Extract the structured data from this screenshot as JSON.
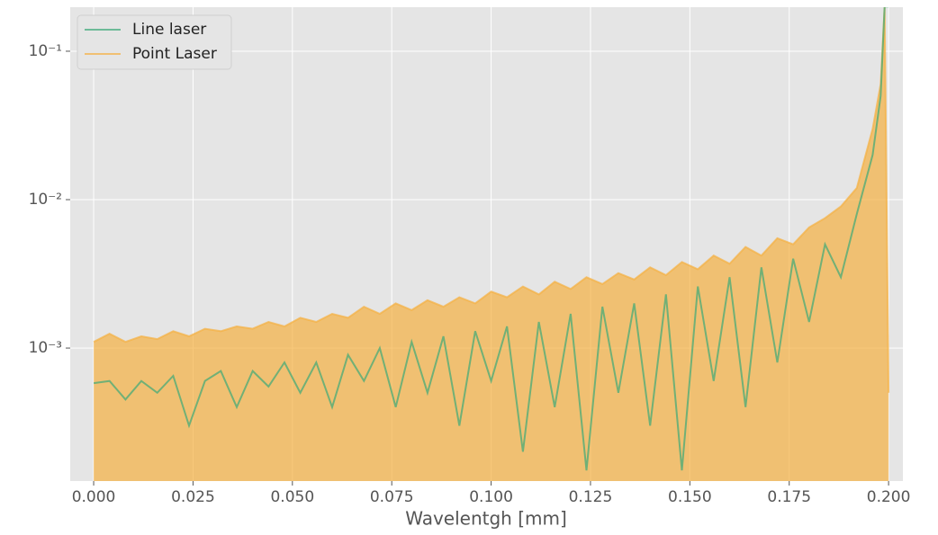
{
  "chart_data": {
    "type": "line",
    "xlabel": "Wavelentgh [mm]",
    "log_y": true,
    "grid": true,
    "legend": "upper left",
    "x": [
      0,
      0.004,
      0.008,
      0.012,
      0.016,
      0.02,
      0.024,
      0.028,
      0.032,
      0.036,
      0.04,
      0.044,
      0.048,
      0.052,
      0.056,
      0.06,
      0.064,
      0.068,
      0.072,
      0.076,
      0.08,
      0.084,
      0.088,
      0.092,
      0.096,
      0.1,
      0.104,
      0.108,
      0.112,
      0.116,
      0.12,
      0.124,
      0.128,
      0.132,
      0.136,
      0.14,
      0.144,
      0.148,
      0.152,
      0.156,
      0.16,
      0.164,
      0.168,
      0.172,
      0.176,
      0.18,
      0.184,
      0.188,
      0.192,
      0.196,
      0.198,
      0.199,
      0.2
    ],
    "series": [
      {
        "name": "Line laser",
        "color": "#3aaa78",
        "values": [
          0.00058,
          0.0006,
          0.00045,
          0.0006,
          0.0005,
          0.00065,
          0.0003,
          0.0006,
          0.0007,
          0.0004,
          0.0007,
          0.00055,
          0.0008,
          0.0005,
          0.0008,
          0.0004,
          0.0009,
          0.0006,
          0.001,
          0.0004,
          0.0011,
          0.0005,
          0.0012,
          0.0003,
          0.0013,
          0.0006,
          0.0014,
          0.0002,
          0.0015,
          0.0004,
          0.0017,
          0.00015,
          0.0019,
          0.0005,
          0.002,
          0.0003,
          0.0023,
          0.00015,
          0.0026,
          0.0006,
          0.003,
          0.0004,
          0.0035,
          0.0008,
          0.004,
          0.0015,
          0.005,
          0.003,
          0.008,
          0.02,
          0.05,
          0.2,
          0.2
        ]
      },
      {
        "name": "Point Laser",
        "color": "#f5b041",
        "values": [
          0.0011,
          0.00125,
          0.0011,
          0.0012,
          0.00115,
          0.0013,
          0.0012,
          0.00135,
          0.0013,
          0.0014,
          0.00135,
          0.0015,
          0.0014,
          0.0016,
          0.0015,
          0.0017,
          0.0016,
          0.0019,
          0.0017,
          0.002,
          0.0018,
          0.0021,
          0.0019,
          0.0022,
          0.002,
          0.0024,
          0.0022,
          0.0026,
          0.0023,
          0.0028,
          0.0025,
          0.003,
          0.0027,
          0.0032,
          0.0029,
          0.0035,
          0.0031,
          0.0038,
          0.0034,
          0.0042,
          0.0037,
          0.0048,
          0.0042,
          0.0055,
          0.005,
          0.0065,
          0.0075,
          0.009,
          0.012,
          0.03,
          0.06,
          0.2,
          0.0005
        ]
      }
    ],
    "xlim": [
      -0.0059,
      0.2036
    ],
    "ylim": [
      0.000127,
      0.198
    ],
    "xticks": [
      {
        "value": 0,
        "label": "0.000"
      },
      0.025,
      {
        "value": 0.05,
        "label": "0.050"
      },
      0.075,
      {
        "value": 0.1,
        "label": "0.100"
      },
      0.125,
      {
        "value": 0.15,
        "label": "0.150"
      },
      0.175,
      {
        "value": 0.2,
        "label": "0.200"
      }
    ],
    "yticks": [
      {
        "value": 0.001,
        "label": "10⁻³"
      },
      {
        "value": 0.01,
        "label": "10⁻²"
      },
      {
        "value": 0.1,
        "label": "10⁻¹"
      }
    ]
  }
}
